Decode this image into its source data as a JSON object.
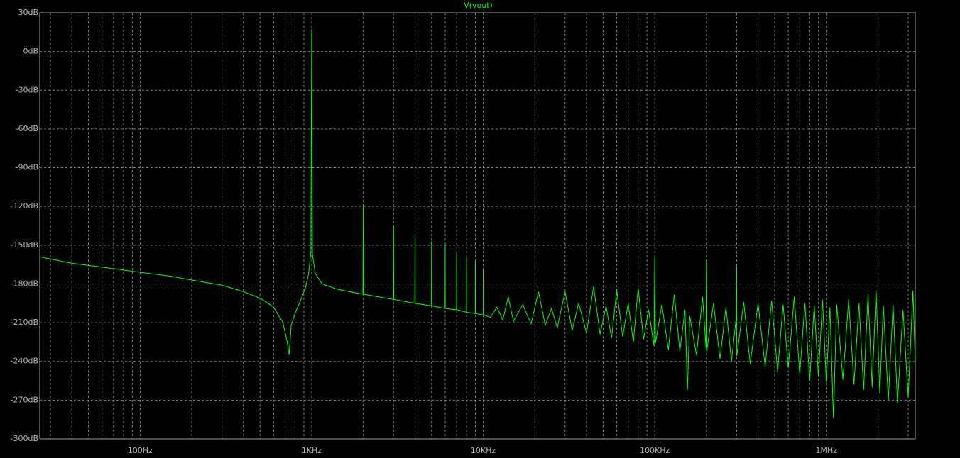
{
  "chart_data": {
    "type": "line",
    "xscale": "log",
    "grid": true,
    "background": "#000000",
    "series": [
      {
        "name": "V(vout)",
        "color": "#00ff00",
        "values": [
          -159,
          -164,
          -167,
          -171,
          -174,
          -177,
          -181,
          -186,
          -191,
          -198,
          -210,
          -225,
          -235,
          -212,
          -203,
          -193,
          -183,
          -172,
          -155,
          17,
          -157,
          -172,
          -180,
          -184,
          -188,
          -119,
          -188,
          -192,
          -135,
          -192,
          -195,
          -142,
          -195,
          -197,
          -147,
          -197,
          -199,
          -150,
          -199,
          -200,
          -156,
          -200,
          -202,
          -159,
          -202,
          -203,
          -163,
          -203,
          -204,
          -169,
          -204,
          -206,
          -198,
          -208,
          -190,
          -209,
          -196,
          -211,
          -186,
          -212,
          -199,
          -214,
          -186,
          -216,
          -195,
          -218,
          -182,
          -219,
          -197,
          -222,
          -185,
          -221,
          -195,
          -225,
          -183,
          -223,
          -200,
          -228,
          -159,
          -226,
          -196,
          -231,
          -188,
          -232,
          -200,
          -262,
          -205,
          -235,
          -190,
          -230,
          -161,
          -232,
          -195,
          -238,
          -198,
          -240,
          -205,
          -166,
          -236,
          -194,
          -242,
          -195,
          -244,
          -193,
          -248,
          -196,
          -245,
          -190,
          -250,
          -195,
          -255,
          -197,
          -252,
          -192,
          -256,
          -198,
          -284,
          -196,
          -254,
          -192,
          -258,
          -195,
          -262,
          -188,
          -260,
          -185,
          -265,
          -197,
          -270,
          -196,
          -272,
          -200,
          -268,
          -185,
          -242
        ]
      }
    ],
    "x": [
      26,
      40,
      60,
      100,
      150,
      200,
      300,
      400,
      500,
      600,
      680,
      720,
      738,
      760,
      800,
      860,
      920,
      960,
      990,
      1000,
      1010,
      1050,
      1150,
      1400,
      1990,
      2000,
      2010,
      2990,
      3000,
      3010,
      3990,
      4000,
      4010,
      4990,
      5000,
      5010,
      5990,
      6000,
      6010,
      6990,
      7000,
      7010,
      7990,
      8000,
      8010,
      8990,
      9000,
      9010,
      9990,
      10000,
      10010,
      11000,
      12000,
      13000,
      14000,
      15000,
      17000,
      19000,
      21000,
      23000,
      25000,
      27000,
      30000,
      33000,
      36000,
      40000,
      44000,
      48000,
      52000,
      56000,
      60000,
      65000,
      70000,
      75000,
      80000,
      86000,
      92000,
      99000,
      100000,
      101000,
      110000,
      120000,
      130000,
      140000,
      150000,
      155000,
      160000,
      175000,
      190000,
      199000,
      200000,
      201000,
      220000,
      240000,
      260000,
      280000,
      299000,
      300000,
      301000,
      330000,
      360000,
      400000,
      440000,
      480000,
      520000,
      560000,
      600000,
      650000,
      700000,
      750000,
      800000,
      850000,
      900000,
      950000,
      1000000,
      1050000,
      1100000,
      1150000,
      1250000,
      1350000,
      1450000,
      1550000,
      1650000,
      1750000,
      1850000,
      1950000,
      2050000,
      2150000,
      2300000,
      2450000,
      2600000,
      2800000,
      3000000,
      3200000,
      3300000
    ],
    "xlim": [
      26,
      3300000
    ],
    "ylim": [
      -300,
      30
    ],
    "xticks": [
      {
        "value": 100,
        "label": "100Hz"
      },
      {
        "value": 1000,
        "label": "1KHz"
      },
      {
        "value": 10000,
        "label": "10KHz"
      },
      {
        "value": 100000,
        "label": "100KHz"
      },
      {
        "value": 1000000,
        "label": "1MHz"
      }
    ],
    "yticks": [
      {
        "value": 30,
        "label": "30dB"
      },
      {
        "value": 0,
        "label": "0dB"
      },
      {
        "value": -30,
        "label": "-30dB"
      },
      {
        "value": -60,
        "label": "-60dB"
      },
      {
        "value": -90,
        "label": "-90dB"
      },
      {
        "value": -120,
        "label": "-120dB"
      },
      {
        "value": -150,
        "label": "-150dB"
      },
      {
        "value": -180,
        "label": "-180dB"
      },
      {
        "value": -210,
        "label": "-210dB"
      },
      {
        "value": -240,
        "label": "-240dB"
      },
      {
        "value": -270,
        "label": "-270dB"
      },
      {
        "value": -300,
        "label": "-300dB"
      }
    ]
  }
}
